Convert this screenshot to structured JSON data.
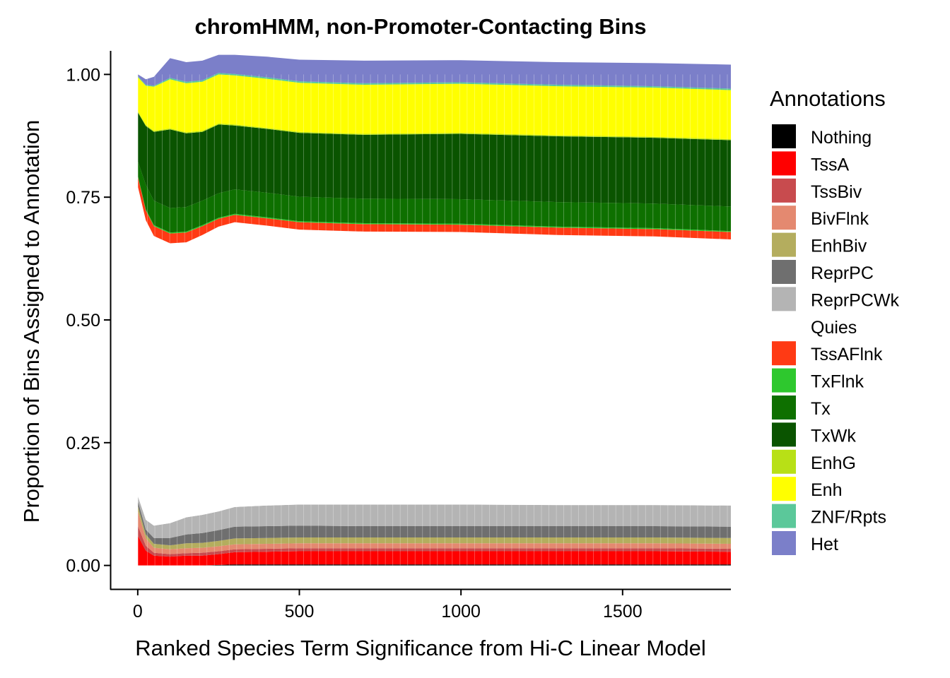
{
  "chart_data": {
    "type": "area",
    "title": "chromHMM, non-Promoter-Contacting Bins",
    "xlabel": "Ranked Species Term Significance from Hi-C Linear Model",
    "ylabel": "Proportion of Bins Assigned to Annotation",
    "xlim": [
      -85,
      1835
    ],
    "ylim": [
      -0.048,
      1.048
    ],
    "x_ticks": [
      0,
      500,
      1000,
      1500
    ],
    "x_tick_labels": [
      "0",
      "500",
      "1000",
      "1500"
    ],
    "y_ticks": [
      0,
      0.25,
      0.5,
      0.75,
      1.0
    ],
    "y_tick_labels": [
      "0.00",
      "0.25",
      "0.50",
      "0.75",
      "1.00"
    ],
    "grid": false,
    "legend": {
      "title": "Annotations",
      "position": "right"
    },
    "x": [
      1,
      25,
      50,
      100,
      150,
      200,
      250,
      300,
      400,
      500,
      700,
      1000,
      1300,
      1600,
      1835
    ],
    "series": [
      {
        "name": "Nothing",
        "color": "#000000",
        "values": [
          0,
          0,
          0,
          0,
          0,
          0,
          0.001,
          0.002,
          0.002,
          0.002,
          0.002,
          0.002,
          0.002,
          0.002,
          0.002
        ]
      },
      {
        "name": "TssA",
        "color": "#FF0000",
        "values": [
          0.06,
          0.03,
          0.02,
          0.018,
          0.02,
          0.02,
          0.022,
          0.025,
          0.026,
          0.027,
          0.027,
          0.027,
          0.027,
          0.027,
          0.026
        ]
      },
      {
        "name": "TssBiv",
        "color": "#C84B4E",
        "values": [
          0.02,
          0.01,
          0.006,
          0.005,
          0.005,
          0.006,
          0.006,
          0.006,
          0.006,
          0.006,
          0.006,
          0.006,
          0.006,
          0.006,
          0.006
        ]
      },
      {
        "name": "BivFlnk",
        "color": "#E48970",
        "values": [
          0.03,
          0.015,
          0.01,
          0.01,
          0.01,
          0.01,
          0.01,
          0.01,
          0.01,
          0.01,
          0.01,
          0.01,
          0.01,
          0.01,
          0.01
        ]
      },
      {
        "name": "EnhBiv",
        "color": "#B4AD5E",
        "values": [
          0.01,
          0.008,
          0.008,
          0.008,
          0.01,
          0.01,
          0.011,
          0.012,
          0.012,
          0.012,
          0.012,
          0.012,
          0.012,
          0.012,
          0.012
        ]
      },
      {
        "name": "ReprPC",
        "color": "#6F6F6F",
        "values": [
          0.01,
          0.01,
          0.012,
          0.015,
          0.018,
          0.02,
          0.022,
          0.024,
          0.024,
          0.024,
          0.023,
          0.023,
          0.023,
          0.023,
          0.023
        ]
      },
      {
        "name": "ReprPCWk",
        "color": "#B4B4B4",
        "values": [
          0.01,
          0.02,
          0.025,
          0.03,
          0.035,
          0.037,
          0.038,
          0.04,
          0.042,
          0.043,
          0.044,
          0.044,
          0.043,
          0.043,
          0.043
        ]
      },
      {
        "name": "Quies",
        "color": "#FFFFFF",
        "values": [
          0.63,
          0.61,
          0.59,
          0.57,
          0.56,
          0.57,
          0.58,
          0.58,
          0.57,
          0.56,
          0.556,
          0.555,
          0.55,
          0.547,
          0.542
        ]
      },
      {
        "name": "TssAFlnk",
        "color": "#FF3A14",
        "values": [
          0.02,
          0.02,
          0.02,
          0.02,
          0.02,
          0.018,
          0.016,
          0.015,
          0.015,
          0.015,
          0.015,
          0.015,
          0.015,
          0.015,
          0.015
        ]
      },
      {
        "name": "TxFlnk",
        "color": "#2EC82E",
        "values": [
          0.002,
          0.002,
          0.002,
          0.002,
          0.002,
          0.002,
          0.002,
          0.002,
          0.002,
          0.002,
          0.002,
          0.002,
          0.002,
          0.002,
          0.002
        ]
      },
      {
        "name": "Tx",
        "color": "#0E7000",
        "values": [
          0.03,
          0.05,
          0.05,
          0.05,
          0.05,
          0.05,
          0.05,
          0.05,
          0.05,
          0.05,
          0.05,
          0.05,
          0.05,
          0.05,
          0.05
        ]
      },
      {
        "name": "TxWk",
        "color": "#0A5400",
        "values": [
          0.1,
          0.12,
          0.14,
          0.16,
          0.15,
          0.14,
          0.14,
          0.13,
          0.13,
          0.13,
          0.13,
          0.133,
          0.134,
          0.134,
          0.135
        ]
      },
      {
        "name": "EnhG",
        "color": "#B8E016",
        "values": [
          0.002,
          0.002,
          0.002,
          0.002,
          0.002,
          0.002,
          0.002,
          0.002,
          0.002,
          0.002,
          0.002,
          0.002,
          0.002,
          0.002,
          0.002
        ]
      },
      {
        "name": "Enh",
        "color": "#FFFF00",
        "values": [
          0.07,
          0.08,
          0.09,
          0.1,
          0.1,
          0.1,
          0.1,
          0.1,
          0.1,
          0.1,
          0.1,
          0.1,
          0.1,
          0.1,
          0.1
        ]
      },
      {
        "name": "ZNF/Rpts",
        "color": "#5BC89A",
        "values": [
          0.002,
          0.002,
          0.002,
          0.003,
          0.003,
          0.003,
          0.003,
          0.003,
          0.003,
          0.003,
          0.003,
          0.003,
          0.003,
          0.003,
          0.003
        ]
      },
      {
        "name": "Het",
        "color": "#7B7FC9",
        "values": [
          0.004,
          0.011,
          0.018,
          0.04,
          0.04,
          0.04,
          0.037,
          0.039,
          0.042,
          0.044,
          0.046,
          0.045,
          0.046,
          0.047,
          0.049
        ]
      }
    ]
  }
}
